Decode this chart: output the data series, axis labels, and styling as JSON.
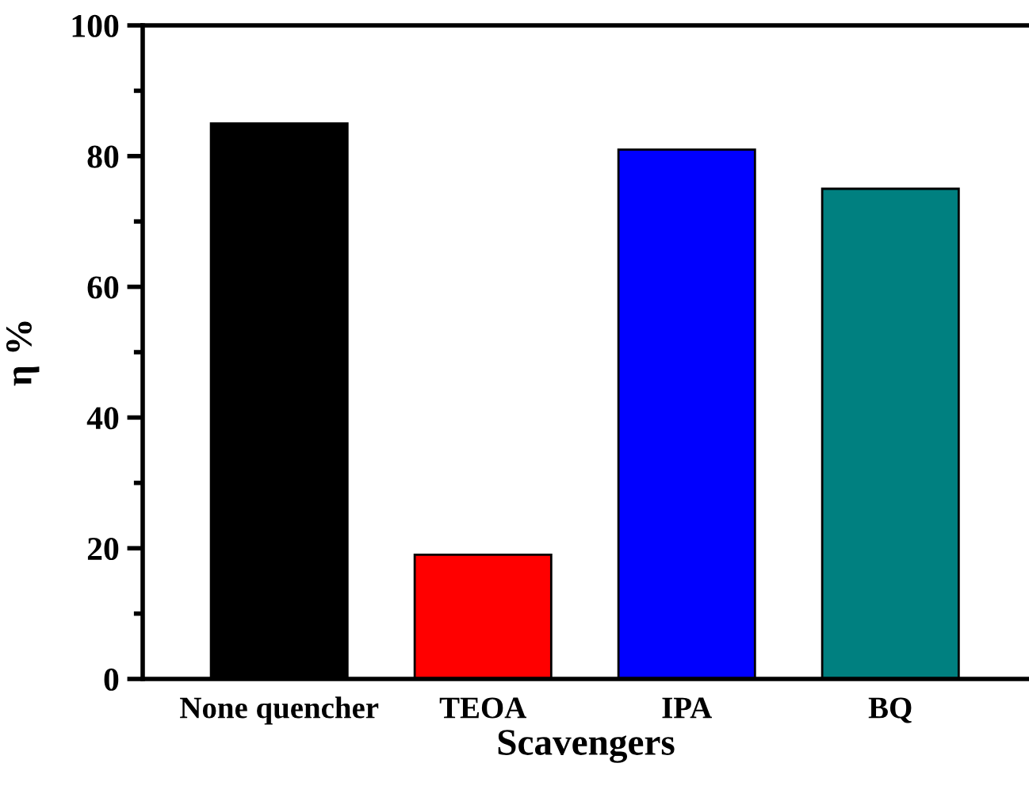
{
  "chart_data": {
    "type": "bar",
    "xlabel": "Scavengers",
    "ylabel": "η %",
    "categories": [
      "None quencher",
      "TEOA",
      "IPA",
      "BQ"
    ],
    "values": [
      85,
      19,
      81,
      75
    ],
    "colors": [
      "#000000",
      "#ff0000",
      "#0000ff",
      "#008080"
    ],
    "ylim": [
      0,
      100
    ],
    "yticks": [
      0,
      20,
      40,
      60,
      80,
      100
    ],
    "grid": false,
    "legend": false
  }
}
